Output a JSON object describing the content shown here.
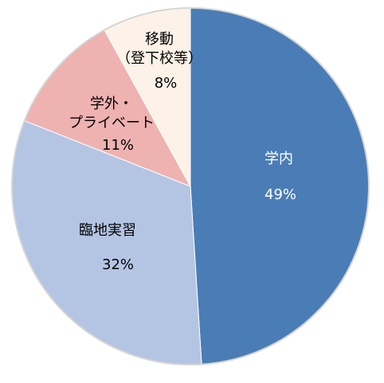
{
  "chart_data": {
    "type": "pie",
    "categories": [
      "学内",
      "臨地実習",
      "学外・\nプライベート",
      "移動\n（登下校等）"
    ],
    "values": [
      49,
      32,
      11,
      8
    ],
    "value_labels": [
      "49%",
      "32%",
      "11%",
      "8%"
    ],
    "colors": [
      "#4a7db5",
      "#b4c5e3",
      "#eeb2b1",
      "#fdf2e7"
    ],
    "label_colors": [
      "#ffffff",
      "#000000",
      "#000000",
      "#000000"
    ]
  }
}
